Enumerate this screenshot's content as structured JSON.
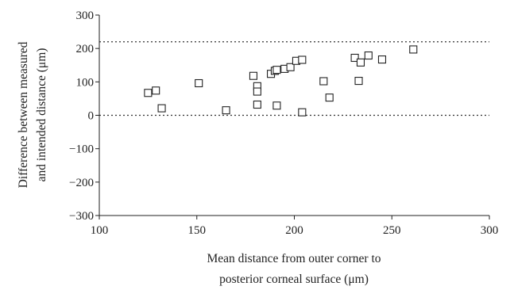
{
  "chart_data": {
    "type": "scatter",
    "xlabel": [
      "Mean distance from outer corner to",
      "posterior corneal surface (μm)"
    ],
    "ylabel": [
      "Difference between measured",
      "and intended distance (μm)"
    ],
    "xlim": [
      100,
      300
    ],
    "ylim": [
      -300,
      300
    ],
    "xticks": [
      "100",
      "150",
      "200",
      "250",
      "300"
    ],
    "yticks": [
      "300",
      "200",
      "100",
      "0",
      "−100",
      "−200",
      "−300"
    ],
    "reference_lines": [
      {
        "y": 220,
        "style": "dotted"
      },
      {
        "y": 0,
        "style": "dotted"
      }
    ],
    "marker": "open-square",
    "colors": {
      "marker": "#222222",
      "axis": "#222222",
      "reference": "#333333"
    },
    "grid": false,
    "legend": "none",
    "points": [
      {
        "x": 125,
        "y": 67
      },
      {
        "x": 129,
        "y": 74
      },
      {
        "x": 132,
        "y": 21
      },
      {
        "x": 151,
        "y": 96
      },
      {
        "x": 165,
        "y": 15
      },
      {
        "x": 179,
        "y": 118
      },
      {
        "x": 181,
        "y": 87
      },
      {
        "x": 181,
        "y": 71
      },
      {
        "x": 181,
        "y": 32
      },
      {
        "x": 188,
        "y": 124
      },
      {
        "x": 190,
        "y": 133
      },
      {
        "x": 191,
        "y": 136
      },
      {
        "x": 191,
        "y": 29
      },
      {
        "x": 195,
        "y": 139
      },
      {
        "x": 198,
        "y": 144
      },
      {
        "x": 201,
        "y": 163
      },
      {
        "x": 204,
        "y": 166
      },
      {
        "x": 204,
        "y": 9
      },
      {
        "x": 215,
        "y": 102
      },
      {
        "x": 218,
        "y": 53
      },
      {
        "x": 231,
        "y": 172
      },
      {
        "x": 233,
        "y": 103
      },
      {
        "x": 234,
        "y": 158
      },
      {
        "x": 238,
        "y": 179
      },
      {
        "x": 245,
        "y": 167
      },
      {
        "x": 261,
        "y": 197
      }
    ]
  }
}
